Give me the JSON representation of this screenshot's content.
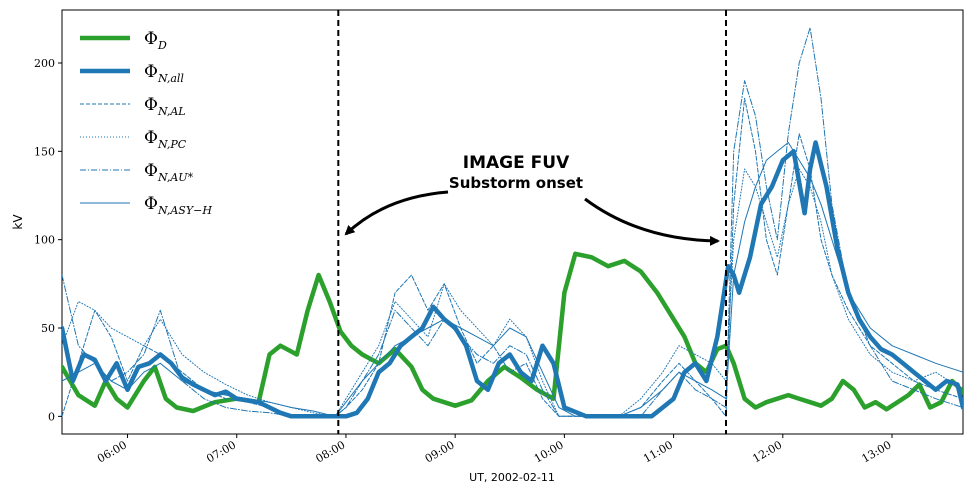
{
  "chart_data": {
    "type": "line",
    "title": "",
    "xlabel": "UT, 2002-02-11",
    "ylabel": "kV",
    "x_unit": "hours UT",
    "xlim": [
      5.4,
      13.65
    ],
    "ylim": [
      -10,
      230
    ],
    "grid": false,
    "legend_position": "top-left",
    "x_ticks": [
      {
        "value": 6,
        "label": "06:00"
      },
      {
        "value": 7,
        "label": "07:00"
      },
      {
        "value": 8,
        "label": "08:00"
      },
      {
        "value": 9,
        "label": "09:00"
      },
      {
        "value": 10,
        "label": "10:00"
      },
      {
        "value": 11,
        "label": "11:00"
      },
      {
        "value": 12,
        "label": "12:00"
      },
      {
        "value": 13,
        "label": "13:00"
      }
    ],
    "y_ticks": [
      0,
      50,
      100,
      150,
      200
    ],
    "vlines": [
      7.93,
      11.48
    ],
    "annotation": {
      "title": "IMAGE FUV",
      "subtitle": "Substorm onset"
    },
    "series": [
      {
        "name": "Φ_D",
        "legend_main": "Φ",
        "legend_sub": "D",
        "color": "#2ca02c",
        "style": "solid",
        "width": 4.5,
        "x": [
          5.4,
          5.55,
          5.7,
          5.8,
          5.9,
          6.0,
          6.15,
          6.25,
          6.35,
          6.45,
          6.6,
          6.8,
          7.0,
          7.2,
          7.3,
          7.4,
          7.55,
          7.65,
          7.75,
          7.85,
          7.95,
          8.05,
          8.15,
          8.3,
          8.45,
          8.6,
          8.7,
          8.8,
          8.9,
          9.0,
          9.15,
          9.3,
          9.45,
          9.6,
          9.75,
          9.9,
          10.0,
          10.1,
          10.25,
          10.4,
          10.55,
          10.7,
          10.85,
          11.0,
          11.1,
          11.2,
          11.3,
          11.4,
          11.48,
          11.55,
          11.65,
          11.75,
          11.85,
          11.95,
          12.05,
          12.15,
          12.25,
          12.35,
          12.45,
          12.55,
          12.65,
          12.75,
          12.85,
          12.95,
          13.05,
          13.15,
          13.25,
          13.35,
          13.45,
          13.55,
          13.65
        ],
        "y": [
          28,
          12,
          6,
          20,
          10,
          5,
          20,
          28,
          10,
          5,
          3,
          8,
          10,
          8,
          35,
          40,
          35,
          60,
          80,
          65,
          48,
          40,
          35,
          30,
          38,
          28,
          15,
          10,
          8,
          6,
          9,
          20,
          28,
          22,
          15,
          10,
          70,
          92,
          90,
          85,
          88,
          82,
          70,
          55,
          45,
          30,
          25,
          38,
          40,
          30,
          10,
          5,
          8,
          10,
          12,
          10,
          8,
          6,
          10,
          20,
          15,
          5,
          8,
          4,
          8,
          12,
          18,
          5,
          8,
          20,
          14
        ]
      },
      {
        "name": "Φ_N,all",
        "legend_main": "Φ",
        "legend_sub": "N,all",
        "color": "#1f77b4",
        "style": "solid",
        "width": 4.5,
        "x": [
          5.4,
          5.5,
          5.6,
          5.7,
          5.8,
          5.9,
          6.0,
          6.1,
          6.2,
          6.3,
          6.4,
          6.5,
          6.6,
          6.7,
          6.8,
          6.9,
          7.0,
          7.1,
          7.2,
          7.3,
          7.4,
          7.5,
          7.6,
          7.7,
          7.8,
          7.9,
          8.0,
          8.1,
          8.2,
          8.3,
          8.4,
          8.5,
          8.6,
          8.7,
          8.8,
          8.9,
          9.0,
          9.1,
          9.2,
          9.3,
          9.4,
          9.5,
          9.6,
          9.7,
          9.8,
          9.9,
          10.0,
          10.2,
          10.4,
          10.6,
          10.8,
          10.9,
          11.0,
          11.1,
          11.2,
          11.3,
          11.4,
          11.5,
          11.55,
          11.6,
          11.7,
          11.8,
          11.9,
          12.0,
          12.1,
          12.2,
          12.25,
          12.3,
          12.4,
          12.5,
          12.6,
          12.7,
          12.8,
          12.9,
          13.0,
          13.1,
          13.2,
          13.3,
          13.4,
          13.5,
          13.6,
          13.65
        ],
        "y": [
          50,
          20,
          35,
          32,
          20,
          30,
          15,
          28,
          30,
          35,
          30,
          22,
          18,
          15,
          12,
          14,
          10,
          9,
          8,
          5,
          2,
          0,
          0,
          0,
          0,
          0,
          0,
          2,
          10,
          25,
          30,
          40,
          45,
          50,
          62,
          55,
          50,
          40,
          20,
          15,
          30,
          35,
          25,
          20,
          40,
          30,
          5,
          0,
          0,
          0,
          0,
          5,
          10,
          25,
          30,
          20,
          45,
          85,
          80,
          70,
          90,
          120,
          130,
          145,
          150,
          115,
          140,
          155,
          130,
          95,
          70,
          55,
          45,
          38,
          35,
          30,
          25,
          20,
          15,
          20,
          18,
          5
        ]
      },
      {
        "name": "Φ_N,AL",
        "legend_main": "Φ",
        "legend_sub": "N,AL",
        "color": "#1f77b4",
        "style": "dashed",
        "width": 1,
        "x": [
          5.4,
          5.55,
          5.7,
          5.85,
          6.0,
          6.15,
          6.3,
          6.5,
          6.7,
          6.9,
          7.1,
          7.3,
          7.5,
          7.7,
          7.9,
          8.0,
          8.15,
          8.3,
          8.45,
          8.6,
          8.75,
          8.9,
          9.05,
          9.2,
          9.35,
          9.5,
          9.65,
          9.8,
          9.95,
          10.1,
          10.3,
          10.5,
          10.7,
          10.9,
          11.05,
          11.2,
          11.35,
          11.48,
          11.55,
          11.65,
          11.75,
          11.85,
          11.95,
          12.05,
          12.15,
          12.25,
          12.35,
          12.45,
          12.6,
          12.8,
          13.0,
          13.2,
          13.4,
          13.65
        ],
        "y": [
          0,
          30,
          60,
          45,
          20,
          40,
          35,
          25,
          15,
          10,
          8,
          5,
          0,
          0,
          0,
          5,
          15,
          30,
          70,
          80,
          60,
          75,
          50,
          30,
          40,
          25,
          30,
          10,
          0,
          0,
          0,
          0,
          5,
          20,
          30,
          20,
          10,
          0,
          120,
          180,
          150,
          100,
          80,
          120,
          160,
          140,
          100,
          80,
          60,
          40,
          30,
          20,
          15,
          10
        ]
      },
      {
        "name": "Φ_N,PC",
        "legend_main": "Φ",
        "legend_sub": "N,PC",
        "color": "#1f77b4",
        "style": "dotted",
        "width": 1,
        "x": [
          5.4,
          5.55,
          5.7,
          5.85,
          6.0,
          6.15,
          6.3,
          6.5,
          6.7,
          6.9,
          7.1,
          7.3,
          7.5,
          7.7,
          7.9,
          8.0,
          8.15,
          8.3,
          8.45,
          8.6,
          8.75,
          8.9,
          9.05,
          9.2,
          9.35,
          9.5,
          9.65,
          9.8,
          9.95,
          10.1,
          10.3,
          10.5,
          10.7,
          10.9,
          11.05,
          11.2,
          11.35,
          11.48,
          11.55,
          11.65,
          11.75,
          11.85,
          11.95,
          12.05,
          12.15,
          12.25,
          12.35,
          12.45,
          12.6,
          12.8,
          13.0,
          13.2,
          13.4,
          13.65
        ],
        "y": [
          40,
          65,
          60,
          50,
          45,
          40,
          55,
          35,
          25,
          18,
          12,
          8,
          5,
          2,
          0,
          10,
          25,
          40,
          65,
          55,
          45,
          75,
          60,
          50,
          40,
          55,
          45,
          20,
          0,
          0,
          0,
          0,
          10,
          25,
          40,
          35,
          30,
          20,
          100,
          140,
          130,
          110,
          90,
          120,
          140,
          130,
          110,
          80,
          55,
          35,
          25,
          20,
          25,
          15
        ]
      },
      {
        "name": "Φ_N,AU*",
        "legend_main": "Φ",
        "legend_sub": "N,AU*",
        "color": "#1f77b4",
        "style": "dashdot",
        "width": 1,
        "x": [
          5.4,
          5.55,
          5.7,
          5.85,
          6.0,
          6.15,
          6.3,
          6.5,
          6.7,
          6.9,
          7.1,
          7.3,
          7.5,
          7.7,
          7.9,
          8.0,
          8.15,
          8.3,
          8.45,
          8.6,
          8.75,
          8.9,
          9.05,
          9.2,
          9.35,
          9.5,
          9.65,
          9.8,
          9.95,
          10.1,
          10.3,
          10.5,
          10.7,
          10.9,
          11.05,
          11.2,
          11.35,
          11.48,
          11.55,
          11.65,
          11.75,
          11.85,
          11.95,
          12.05,
          12.15,
          12.25,
          12.35,
          12.45,
          12.6,
          12.8,
          13.0,
          13.2,
          13.4,
          13.65
        ],
        "y": [
          80,
          40,
          30,
          20,
          25,
          35,
          60,
          20,
          10,
          5,
          3,
          2,
          0,
          0,
          0,
          5,
          20,
          35,
          60,
          50,
          40,
          55,
          45,
          35,
          30,
          40,
          35,
          15,
          0,
          0,
          0,
          0,
          0,
          15,
          25,
          15,
          10,
          5,
          150,
          190,
          170,
          130,
          100,
          160,
          200,
          220,
          180,
          120,
          70,
          40,
          20,
          15,
          10,
          5
        ]
      },
      {
        "name": "Φ_N,ASY-H",
        "legend_main": "Φ",
        "legend_sub": "N,ASY−H",
        "color": "#1f77b4",
        "style": "solid",
        "width": 1,
        "x": [
          5.4,
          5.55,
          5.7,
          5.85,
          6.0,
          6.15,
          6.3,
          6.5,
          6.7,
          6.9,
          7.1,
          7.3,
          7.5,
          7.7,
          7.9,
          8.0,
          8.15,
          8.3,
          8.45,
          8.6,
          8.75,
          8.9,
          9.05,
          9.2,
          9.35,
          9.5,
          9.65,
          9.8,
          9.95,
          10.1,
          10.3,
          10.5,
          10.7,
          10.9,
          11.05,
          11.2,
          11.35,
          11.48,
          11.55,
          11.65,
          11.75,
          11.85,
          11.95,
          12.05,
          12.15,
          12.25,
          12.35,
          12.45,
          12.6,
          12.8,
          13.0,
          13.2,
          13.4,
          13.65
        ],
        "y": [
          20,
          25,
          30,
          20,
          15,
          25,
          30,
          20,
          15,
          12,
          10,
          8,
          5,
          3,
          0,
          8,
          20,
          30,
          40,
          45,
          50,
          55,
          50,
          45,
          40,
          50,
          45,
          25,
          5,
          0,
          0,
          0,
          5,
          15,
          25,
          20,
          15,
          10,
          80,
          110,
          130,
          145,
          150,
          155,
          145,
          135,
          120,
          100,
          70,
          50,
          40,
          35,
          30,
          25
        ]
      }
    ]
  }
}
